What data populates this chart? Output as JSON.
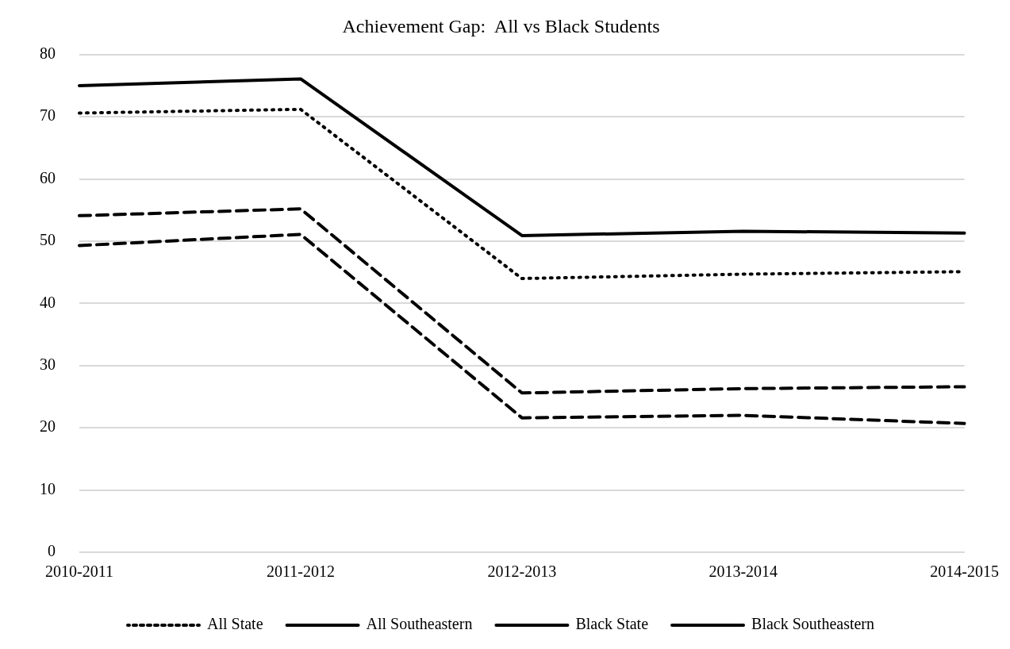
{
  "chart_data": {
    "type": "line",
    "title": "Achievement Gap:  All vs Black Students",
    "categories": [
      "2010-2011",
      "2011-2012",
      "2012-2013",
      "2013-2014",
      "2014-2015"
    ],
    "series": [
      {
        "name": "All State",
        "color": "#000000",
        "line_style": "dotted",
        "values": [
          70.6,
          71.2,
          44.0,
          44.7,
          45.1
        ]
      },
      {
        "name": "All Southeastern",
        "color": "#000000",
        "line_style": "solid",
        "values": [
          75.0,
          76.1,
          50.9,
          51.6,
          51.3
        ]
      },
      {
        "name": "Black State",
        "color": "#000000",
        "line_style": "dashed",
        "values": [
          54.1,
          55.2,
          25.6,
          26.3,
          26.6
        ]
      },
      {
        "name": "Black Southeastern",
        "color": "#000000",
        "line_style": "dashed",
        "values": [
          49.3,
          51.1,
          21.6,
          22.0,
          20.7
        ]
      }
    ],
    "ylim": [
      0,
      80
    ],
    "yticks": [
      0,
      10,
      20,
      30,
      40,
      50,
      60,
      70,
      80
    ],
    "grid": "y",
    "legend": "bottom",
    "marker": "none"
  }
}
